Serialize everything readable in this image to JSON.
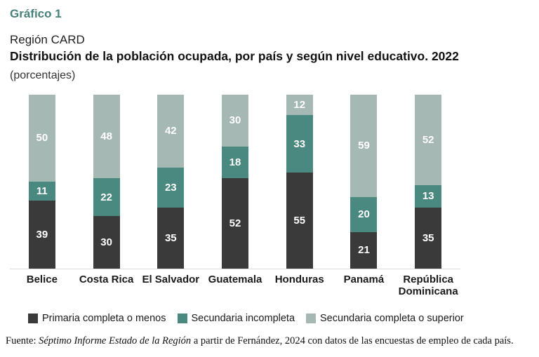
{
  "header": {
    "kicker": "Gráfico 1",
    "region": "Región CARD",
    "title": "Distribución de la población ocupada, por país y según nivel educativo. 2022",
    "subtitle": "(porcentajes)"
  },
  "colors": {
    "accent_teal": "#47817a",
    "primaria": "#3a3a3a",
    "secundaria_incompleta": "#4a897f",
    "secundaria_completa": "#a6b8b4",
    "axis_line": "#dcdcdc",
    "value_label": "#ffffff"
  },
  "chart_data": {
    "type": "bar",
    "stacked": true,
    "percent_stacked": true,
    "unit": "percent",
    "title": "Distribución de la población ocupada, por país y según nivel educativo. 2022",
    "xlabel": "",
    "ylabel": "",
    "ylim": [
      0,
      100
    ],
    "grid": false,
    "legend_position": "bottom",
    "categories": [
      "Belice",
      "Costa Rica",
      "El Salvador",
      "Guatemala",
      "Honduras",
      "Panamá",
      "República Dominicana"
    ],
    "series": [
      {
        "name": "Primaria completa o menos",
        "color": "#3a3a3a",
        "values": [
          39,
          30,
          35,
          52,
          55,
          21,
          35
        ]
      },
      {
        "name": "Secundaria incompleta",
        "color": "#4a897f",
        "values": [
          11,
          22,
          23,
          18,
          33,
          20,
          13
        ]
      },
      {
        "name": "Secundaria completa o superior",
        "color": "#a6b8b4",
        "values": [
          50,
          48,
          42,
          30,
          12,
          59,
          52
        ]
      }
    ]
  },
  "legend": {
    "items": [
      {
        "label": "Primaria completa o menos",
        "color": "#3a3a3a"
      },
      {
        "label": "Secundaria incompleta",
        "color": "#4a897f"
      },
      {
        "label": "Secundaria completa o superior",
        "color": "#a6b8b4"
      }
    ]
  },
  "footer": {
    "prefix": "Fuente: ",
    "source_italic": "Séptimo Informe Estado de la Región",
    "suffix": " a partir de Fernández, 2024 con datos de las encuestas de empleo de cada país."
  }
}
